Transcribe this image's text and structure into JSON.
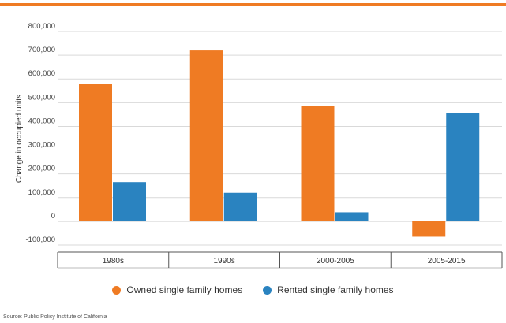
{
  "colors": {
    "accent": "#ef7b23",
    "owned": "#ef7b23",
    "rented": "#2a83c0"
  },
  "chart_data": {
    "type": "bar",
    "categories": [
      "1980s",
      "1990s",
      "2000-2005",
      "2005-2015"
    ],
    "series": [
      {
        "name": "Owned single family homes",
        "values": [
          578000,
          720000,
          487000,
          -65000
        ]
      },
      {
        "name": "Rented single family homes",
        "values": [
          165000,
          120000,
          38000,
          455000
        ]
      }
    ],
    "title": "",
    "xlabel": "",
    "ylabel": "Change in occupied units",
    "ylim": [
      -100000,
      800000
    ],
    "yticks": [
      800000,
      700000,
      600000,
      500000,
      400000,
      300000,
      200000,
      100000,
      0,
      -100000
    ],
    "ytick_labels": [
      "800,000",
      "700,000",
      "600,000",
      "500,000",
      "400,000",
      "300,000",
      "200,000",
      "100,000",
      "0",
      "-100,000"
    ],
    "grid": true,
    "legend_position": "bottom"
  },
  "source": "Source: Public Policy Institute of California"
}
